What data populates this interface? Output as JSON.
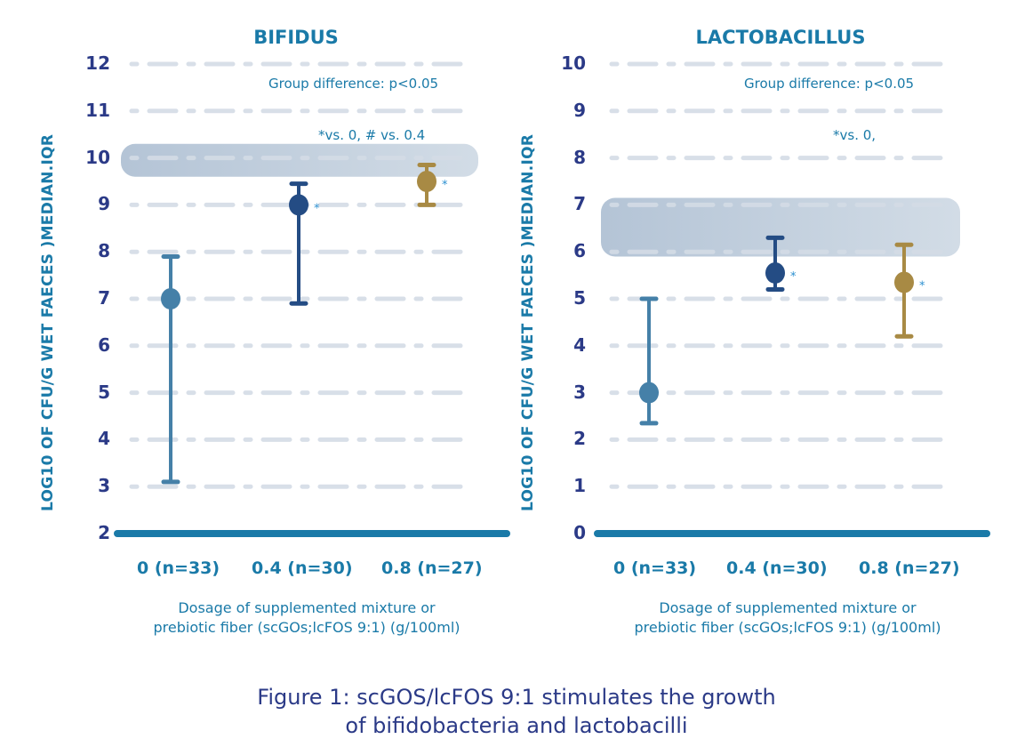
{
  "caption": {
    "line1": "Figure 1: scGOS/lcFOS 9:1 stimulates the growth",
    "line2": "of bifidobacteria and lactobacilli"
  },
  "colors": {
    "group_0": "#4580a8",
    "group_04": "#244c84",
    "group_08": "#a88a44",
    "axis": "#1a7aa8",
    "tick_text": "#2b3a87",
    "band": "#b8c8d8",
    "grid": "#d4dce6"
  },
  "chart_data": [
    {
      "type": "scatter",
      "subtype": "median-with-iqr-errorbars",
      "title": "BIFIDUS",
      "ylabel": "LOG10 OF  CFU/G WET FAECES )MEDIAN.IQR",
      "xlabel": "Dosage of supplemented mixture or prebiotic fiber (scGOs;lcFOS 9:1) (g/100ml)",
      "xlabel_lines": [
        "Dosage of supplemented mixture or",
        "prebiotic fiber (scGOs;lcFOS 9:1) (g/100ml)"
      ],
      "categories": [
        "0 (n=33)",
        "0.4 (n=30)",
        "0.8 (n=27)"
      ],
      "ylim": [
        2,
        12
      ],
      "yticks": [
        "2",
        "3",
        "4",
        "5",
        "6",
        "7",
        "8",
        "9",
        "10",
        "11",
        "12"
      ],
      "grid": true,
      "series": [
        {
          "name": "0",
          "median": 7.0,
          "q1": 3.1,
          "q3": 7.9,
          "marker": ""
        },
        {
          "name": "0.4",
          "median": 9.0,
          "q1": 6.9,
          "q3": 9.45,
          "marker": "*"
        },
        {
          "name": "0.8",
          "median": 9.5,
          "q1": 9.0,
          "q3": 9.85,
          "marker": "*"
        }
      ],
      "reference_band": [
        9.6,
        10.3
      ],
      "annotations": [
        "Group difference: p<0.05",
        "*vs. 0, # vs. 0.4"
      ]
    },
    {
      "type": "scatter",
      "subtype": "median-with-iqr-errorbars",
      "title": "LACTOBACILLUS",
      "ylabel": "LOG10 OF  CFU/G WET FAECES )MEDIAN.IQR",
      "xlabel": "Dosage of supplemented mixture or prebiotic fiber (scGOs;lcFOS 9:1) (g/100ml)",
      "xlabel_lines": [
        "Dosage of supplemented mixture or",
        "prebiotic fiber (scGOs;lcFOS 9:1) (g/100ml)"
      ],
      "categories": [
        "0 (n=33)",
        "0.4 (n=30)",
        "0.8 (n=27)"
      ],
      "ylim": [
        0,
        10
      ],
      "yticks": [
        "0",
        "1",
        "2",
        "3",
        "4",
        "5",
        "6",
        "7",
        "8",
        "9",
        "10"
      ],
      "grid": true,
      "series": [
        {
          "name": "0",
          "median": 3.0,
          "q1": 2.35,
          "q3": 5.0,
          "marker": ""
        },
        {
          "name": "0.4",
          "median": 5.55,
          "q1": 5.2,
          "q3": 6.3,
          "marker": "*"
        },
        {
          "name": "0.8",
          "median": 5.35,
          "q1": 4.2,
          "q3": 6.15,
          "marker": "*"
        }
      ],
      "reference_band": [
        5.9,
        7.15
      ],
      "annotations": [
        "Group difference: p<0.05",
        "*vs. 0,"
      ]
    }
  ]
}
